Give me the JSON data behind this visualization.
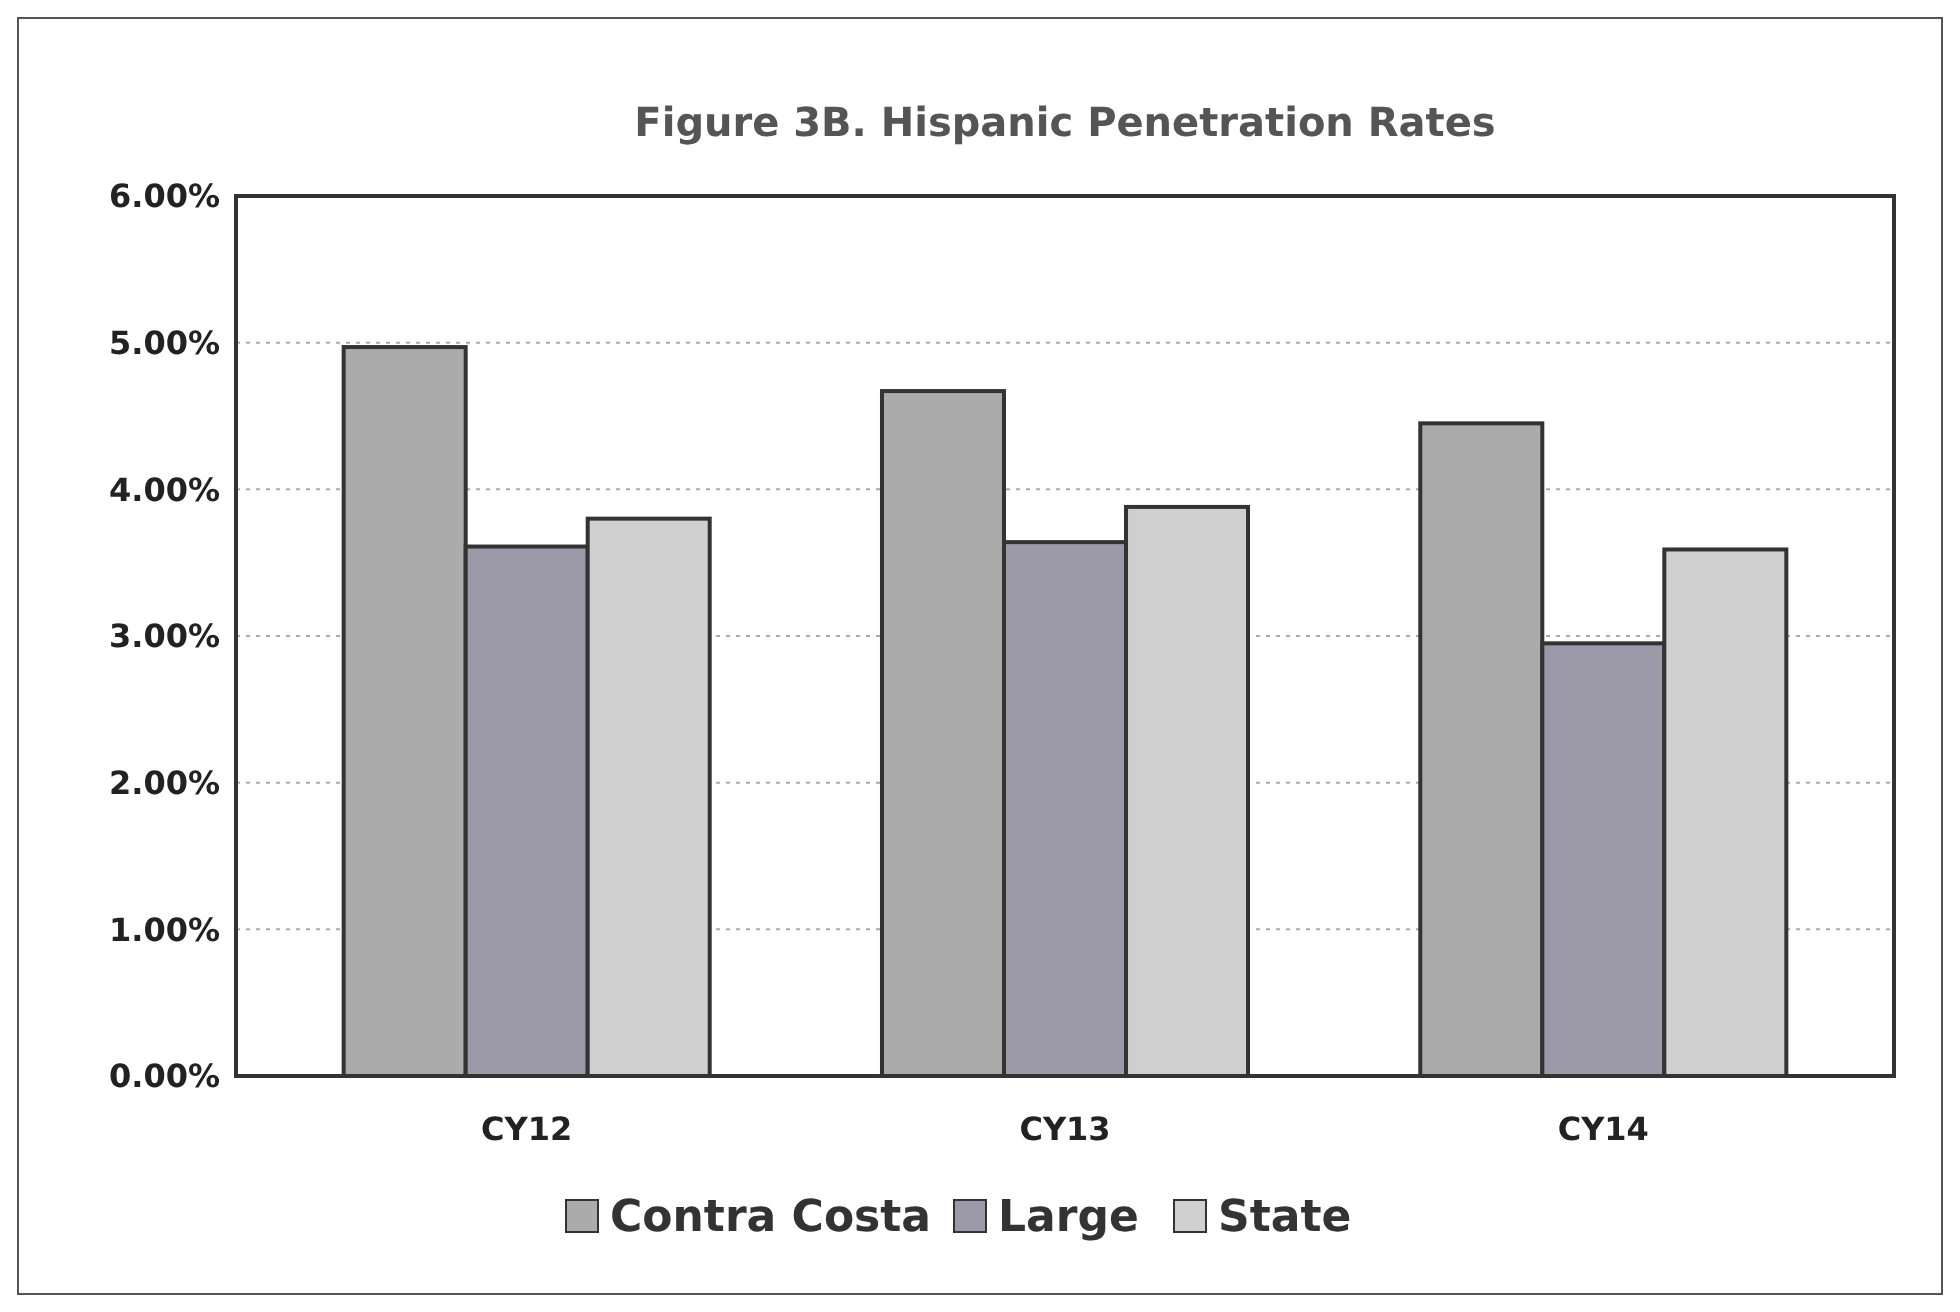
{
  "chart_data": {
    "type": "bar",
    "title": "Figure 3B. Hispanic Penetration Rates",
    "categories": [
      "CY12",
      "CY13",
      "CY14"
    ],
    "series": [
      {
        "name": "Contra Costa",
        "color": "#ababab",
        "values": [
          4.97,
          4.67,
          4.45
        ]
      },
      {
        "name": "Large",
        "color": "#9c9aa8",
        "values": [
          3.61,
          3.64,
          2.95
        ]
      },
      {
        "name": "State",
        "color": "#cfcfcf",
        "values": [
          3.8,
          3.88,
          3.59
        ]
      }
    ],
    "ylim": [
      0,
      6
    ],
    "yticks": [
      {
        "value": 0,
        "label": "0.00%"
      },
      {
        "value": 1,
        "label": "1.00%"
      },
      {
        "value": 2,
        "label": "2.00%"
      },
      {
        "value": 3,
        "label": "3.00%"
      },
      {
        "value": 4,
        "label": "4.00%"
      },
      {
        "value": 5,
        "label": "5.00%"
      },
      {
        "value": 6,
        "label": "6.00%"
      }
    ],
    "grid": "y",
    "legend": "bottom"
  }
}
